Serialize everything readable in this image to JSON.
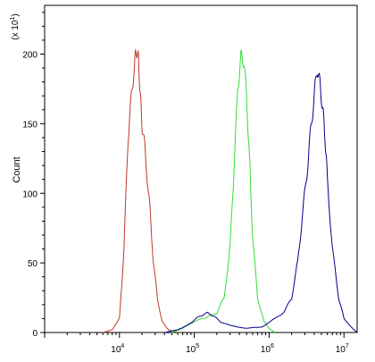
{
  "chart_data": {
    "type": "line",
    "ylabel": "Count",
    "y_multiplier_label": "(x 10",
    "y_multiplier_exp": "1",
    "y_multiplier_close": ")",
    "x_scale": "log",
    "xlim": [
      1000,
      15000000
    ],
    "ylim": [
      0,
      235
    ],
    "y_ticks": [
      0,
      50,
      100,
      150,
      200
    ],
    "y_tick_labels": [
      "0",
      "50",
      "100",
      "150",
      "200"
    ],
    "x_major_ticks": [
      10000,
      100000,
      1000000,
      10000000
    ],
    "x_tick_labels": [
      {
        "base": "10",
        "exp": "4"
      },
      {
        "base": "10",
        "exp": "5"
      },
      {
        "base": "10",
        "exp": "6"
      },
      {
        "base": "10",
        "exp": "7"
      }
    ],
    "grid": false,
    "series": [
      {
        "color": "#c0392b",
        "x": [
          6000,
          8000,
          10000,
          11500,
          13000,
          14500,
          16000,
          17000,
          18000,
          19000,
          20000,
          22000,
          25000,
          28000,
          32000,
          37000,
          45000,
          60000
        ],
        "y": [
          0,
          2,
          10,
          60,
          140,
          170,
          195,
          203,
          195,
          170,
          150,
          130,
          95,
          55,
          25,
          8,
          2,
          0
        ]
      },
      {
        "color": "#33dd33",
        "x": [
          50000,
          70000,
          100000,
          130000,
          160000,
          200000,
          250000,
          300000,
          340000,
          380000,
          420000,
          460000,
          500000,
          550000,
          600000,
          700000,
          850000,
          1000000,
          1200000
        ],
        "y": [
          0,
          3,
          8,
          10,
          12,
          14,
          25,
          60,
          120,
          175,
          198,
          195,
          170,
          120,
          70,
          25,
          8,
          3,
          0
        ]
      },
      {
        "color": "#00008b",
        "x": [
          40000,
          60000,
          80000,
          100000,
          120000,
          150000,
          180000,
          220000,
          300000,
          500000,
          800000,
          1200000,
          1600000,
          2000000,
          2400000,
          2800000,
          3200000,
          3600000,
          4000000,
          4400000,
          4800000,
          5200000,
          5600000,
          6000000,
          7000000,
          8500000,
          10000000,
          13000000,
          15000000
        ],
        "y": [
          0,
          2,
          5,
          9,
          12,
          14,
          12,
          8,
          5,
          3,
          4,
          10,
          15,
          25,
          50,
          85,
          115,
          145,
          170,
          190,
          178,
          160,
          140,
          110,
          60,
          25,
          10,
          3,
          0
        ]
      }
    ]
  }
}
